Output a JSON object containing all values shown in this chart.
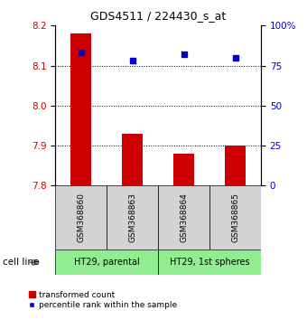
{
  "title": "GDS4511 / 224430_s_at",
  "samples": [
    "GSM368860",
    "GSM368863",
    "GSM368864",
    "GSM368865"
  ],
  "transformed_counts": [
    8.18,
    7.93,
    7.88,
    7.9
  ],
  "percentile_ranks": [
    83,
    78,
    82,
    80
  ],
  "ylim_left": [
    7.8,
    8.2
  ],
  "ylim_right": [
    0,
    100
  ],
  "yticks_left": [
    7.8,
    7.9,
    8.0,
    8.1,
    8.2
  ],
  "yticks_right": [
    0,
    25,
    50,
    75,
    100
  ],
  "ytick_labels_right": [
    "0",
    "25",
    "50",
    "75",
    "100%"
  ],
  "cell_lines": [
    "HT29, parental",
    "HT29, 1st spheres"
  ],
  "cell_line_spans": [
    [
      0,
      2
    ],
    [
      2,
      4
    ]
  ],
  "cell_line_color": "#90EE90",
  "sample_box_color": "#d3d3d3",
  "bar_color": "#cc0000",
  "dot_color": "#0000cc",
  "legend_bar_label": "transformed count",
  "legend_dot_label": "percentile rank within the sample",
  "bar_width": 0.4,
  "fig_width": 3.4,
  "fig_height": 3.54,
  "fig_dpi": 100
}
